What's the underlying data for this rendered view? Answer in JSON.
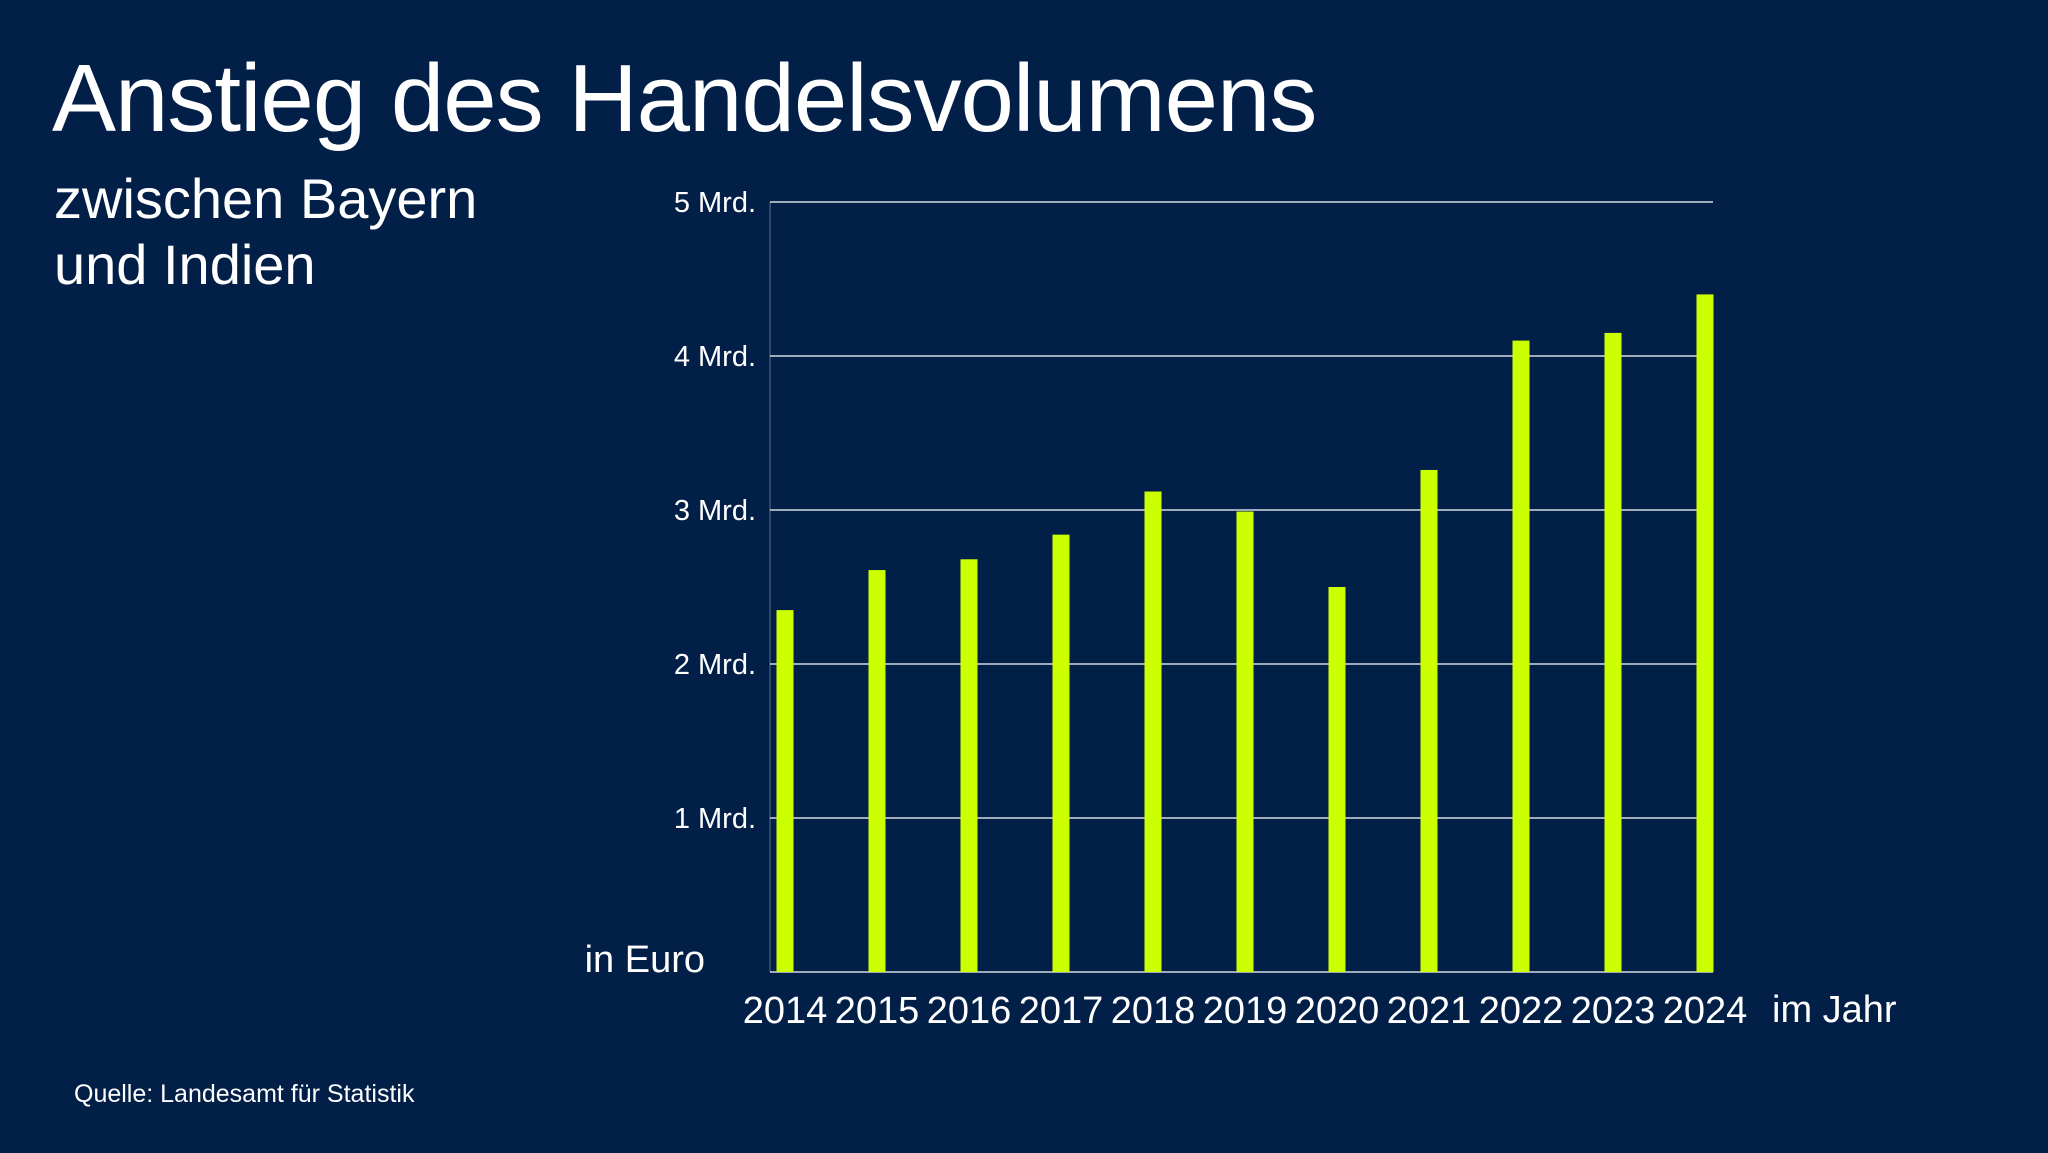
{
  "title": "Anstieg des Handelsvolumens",
  "subtitle": "zwischen Bayern und Indien",
  "source": "Quelle: Landesamt für Statistik",
  "colors": {
    "background": "#021f48",
    "bar": "#ccff00",
    "grid": "#ffffff"
  },
  "chart_data": {
    "type": "bar",
    "title": "Anstieg des Handelsvolumens",
    "subtitle": "zwischen Bayern und Indien",
    "xlabel": "im Jahr",
    "ylabel": "in Euro",
    "categories": [
      "2014",
      "2015",
      "2016",
      "2017",
      "2018",
      "2019",
      "2020",
      "2021",
      "2022",
      "2023",
      "2024"
    ],
    "values": [
      2.35,
      2.61,
      2.68,
      2.84,
      3.12,
      2.99,
      2.5,
      3.26,
      4.1,
      4.15,
      4.4
    ],
    "unit": "Mrd. Euro",
    "ylim": [
      0,
      5
    ],
    "yticks": [
      1,
      2,
      3,
      4,
      5
    ],
    "ytick_labels": [
      "1 Mrd.",
      "2 Mrd.",
      "3 Mrd.",
      "4 Mrd.",
      "5 Mrd."
    ],
    "grid": true,
    "legend": "none"
  }
}
